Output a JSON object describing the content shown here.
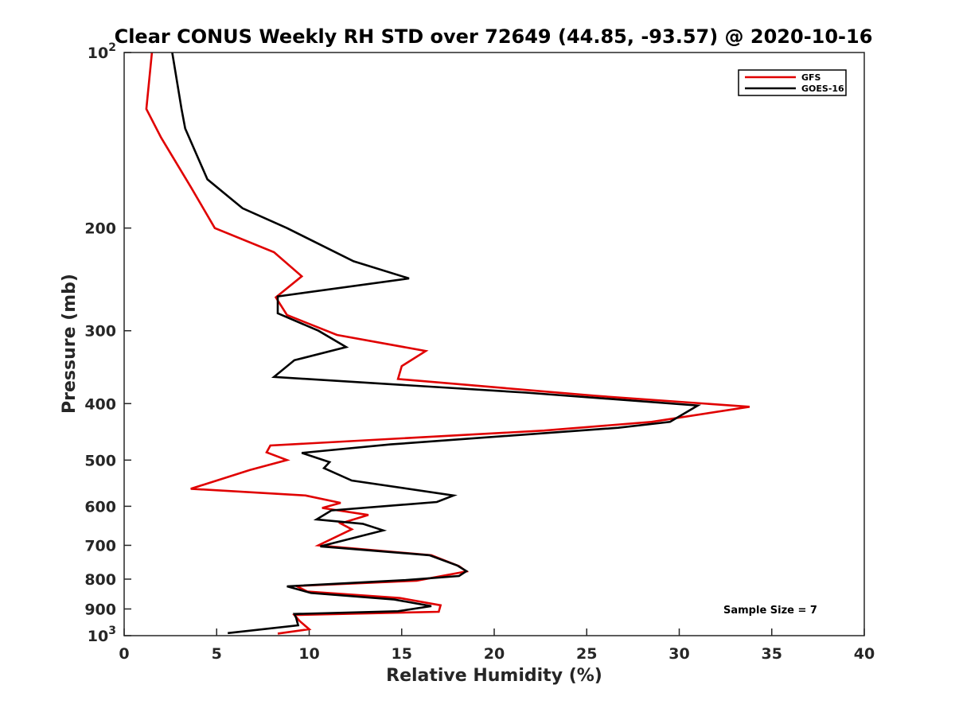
{
  "chart_data": {
    "type": "line",
    "title": "Clear CONUS Weekly RH STD over 72649 (44.85, -93.57) @ 2020-10-16",
    "xlabel": "Relative Humidity (%)",
    "ylabel": "Pressure (mb)",
    "xlim": [
      0,
      40
    ],
    "ylim": [
      100,
      1000
    ],
    "y_scale": "log",
    "y_reversed": true,
    "grid": false,
    "legend_placement": "top-right",
    "x_ticks": [
      0,
      5,
      10,
      15,
      20,
      25,
      30,
      35,
      40
    ],
    "y_ticks": [
      {
        "value": 100,
        "label": "10",
        "sup": "2"
      },
      {
        "value": 200,
        "label": "200",
        "sup": ""
      },
      {
        "value": 300,
        "label": "300",
        "sup": ""
      },
      {
        "value": 400,
        "label": "400",
        "sup": ""
      },
      {
        "value": 500,
        "label": "500",
        "sup": ""
      },
      {
        "value": 600,
        "label": "600",
        "sup": ""
      },
      {
        "value": 700,
        "label": "700",
        "sup": ""
      },
      {
        "value": 800,
        "label": "800",
        "sup": ""
      },
      {
        "value": 900,
        "label": "900",
        "sup": ""
      },
      {
        "value": 1000,
        "label": "10",
        "sup": "3"
      }
    ],
    "series": [
      {
        "name": "GFS",
        "color": "#e00000",
        "points": [
          [
            1.5,
            100
          ],
          [
            1.2,
            125
          ],
          [
            2.0,
            140
          ],
          [
            3.6,
            170
          ],
          [
            4.9,
            200
          ],
          [
            8.1,
            220
          ],
          [
            9.6,
            242
          ],
          [
            8.2,
            263
          ],
          [
            8.8,
            282
          ],
          [
            11.5,
            305
          ],
          [
            16.3,
            325
          ],
          [
            15.0,
            345
          ],
          [
            14.8,
            363
          ],
          [
            25.5,
            388
          ],
          [
            33.8,
            405
          ],
          [
            28.5,
            430
          ],
          [
            22.7,
            445
          ],
          [
            7.9,
            472
          ],
          [
            7.7,
            485
          ],
          [
            8.8,
            500
          ],
          [
            6.8,
            520
          ],
          [
            3.6,
            560
          ],
          [
            9.8,
            575
          ],
          [
            11.7,
            592
          ],
          [
            10.7,
            604
          ],
          [
            13.2,
            621
          ],
          [
            11.7,
            642
          ],
          [
            12.3,
            657
          ],
          [
            10.5,
            700
          ],
          [
            16.6,
            728
          ],
          [
            18.1,
            760
          ],
          [
            18.5,
            776
          ],
          [
            15.8,
            805
          ],
          [
            9.3,
            822
          ],
          [
            9.9,
            840
          ],
          [
            14.9,
            862
          ],
          [
            17.1,
            887
          ],
          [
            17.0,
            910
          ],
          [
            9.2,
            922
          ],
          [
            9.5,
            945
          ],
          [
            10.0,
            975
          ],
          [
            8.3,
            992
          ]
        ]
      },
      {
        "name": "GOES-16",
        "color": "#000000",
        "points": [
          [
            2.6,
            100
          ],
          [
            3.1,
            125
          ],
          [
            3.3,
            135
          ],
          [
            4.5,
            165
          ],
          [
            6.4,
            185
          ],
          [
            8.8,
            200
          ],
          [
            12.4,
            228
          ],
          [
            15.4,
            244
          ],
          [
            8.3,
            262
          ],
          [
            8.3,
            280
          ],
          [
            10.5,
            300
          ],
          [
            12.0,
            320
          ],
          [
            9.2,
            337
          ],
          [
            8.1,
            360
          ],
          [
            21.7,
            383
          ],
          [
            31.0,
            403
          ],
          [
            29.5,
            430
          ],
          [
            26.7,
            440
          ],
          [
            14.4,
            470
          ],
          [
            9.6,
            486
          ],
          [
            11.1,
            504
          ],
          [
            10.8,
            516
          ],
          [
            12.3,
            542
          ],
          [
            17.8,
            575
          ],
          [
            16.9,
            590
          ],
          [
            11.2,
            610
          ],
          [
            10.4,
            632
          ],
          [
            12.9,
            643
          ],
          [
            14.0,
            660
          ],
          [
            10.6,
            703
          ],
          [
            16.5,
            728
          ],
          [
            18.0,
            758
          ],
          [
            18.5,
            775
          ],
          [
            18.1,
            790
          ],
          [
            15.2,
            803
          ],
          [
            8.8,
            823
          ],
          [
            10.1,
            845
          ],
          [
            14.6,
            867
          ],
          [
            16.6,
            890
          ],
          [
            14.8,
            908
          ],
          [
            9.2,
            918
          ],
          [
            9.3,
            933
          ],
          [
            9.4,
            960
          ],
          [
            5.6,
            990
          ]
        ]
      }
    ],
    "annotations": [
      {
        "text": "Sample Size = 7"
      }
    ]
  }
}
